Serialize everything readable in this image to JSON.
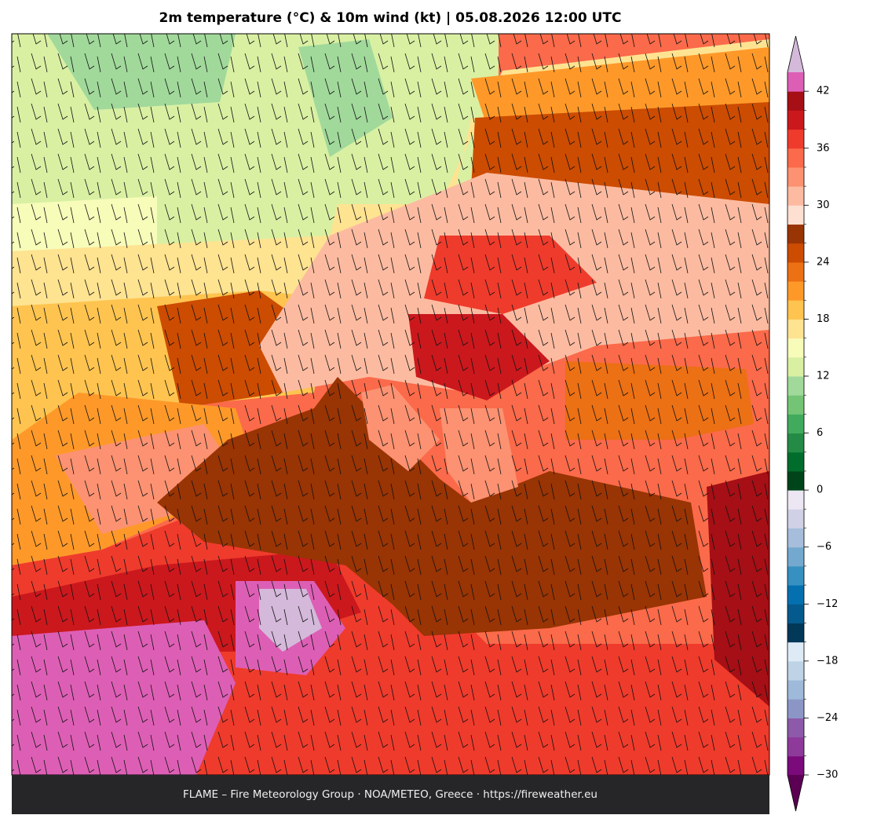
{
  "title": "2m temperature (°C) & 10m wind (kt)  |  05.08.2026 12:00 UTC",
  "footer": "FLAME – Fire Meteorology Group · NOA/METEO, Greece · https://fireweather.eu",
  "colorbar": {
    "lim": [
      -30,
      44
    ],
    "ticks": [
      {
        "value": -30,
        "label": "−30"
      },
      {
        "value": -24,
        "label": "−24"
      },
      {
        "value": -18,
        "label": "−18"
      },
      {
        "value": -12,
        "label": "−12"
      },
      {
        "value": -6,
        "label": "−6"
      },
      0,
      6,
      12,
      18,
      24,
      30,
      36,
      42
    ],
    "colors": [
      "#7b0a7b",
      "#8e3a9b",
      "#8c5aa8",
      "#8c96c6",
      "#9eb9d9",
      "#bfd3e6",
      "#deebf7",
      "#023858",
      "#045a8d",
      "#0570b0",
      "#3690c0",
      "#74a9cf",
      "#a6bddb",
      "#d0d1e6",
      "#ece7f2",
      "#00441b",
      "#006d2c",
      "#238b45",
      "#41ab5d",
      "#74c476",
      "#a1d99b",
      "#d9f0a3",
      "#f7fcb9",
      "#fee391",
      "#fec44f",
      "#fe9929",
      "#ec7014",
      "#cc4c02",
      "#993404",
      "#fee0d2",
      "#fcbba1",
      "#fc9272",
      "#fb6a4a",
      "#ef3b2c",
      "#cb181d",
      "#a50f15",
      "#dd5fb5"
    ],
    "over": "#d4b9da",
    "under": "#5b0052"
  }
}
